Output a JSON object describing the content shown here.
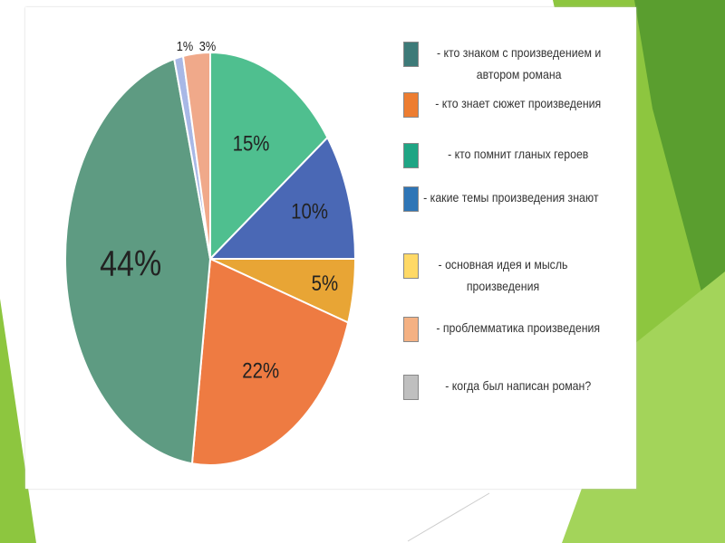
{
  "chart_data": {
    "type": "pie",
    "title": "",
    "slices": [
      {
        "label": "- кто помнит гланых героев",
        "value": 15,
        "display": "15%",
        "color": "#4fbf8f"
      },
      {
        "label": "- какие темы произведения знают",
        "value": 10,
        "display": "10%",
        "color": "#4a68b5"
      },
      {
        "label": "- основная идея и мысль произведения",
        "value": 5,
        "display": "5%",
        "color": "#e8a535"
      },
      {
        "label": "- кто знает сюжет произведения",
        "value": 22,
        "display": "22%",
        "color": "#ee7b42"
      },
      {
        "label": "- кто знаком с произведением и автором романа",
        "value": 44,
        "display": "44%",
        "color": "#5e9b82"
      },
      {
        "label": "- когда был написан роман?",
        "value": 1,
        "display": "1%",
        "color": "#a8b8e6"
      },
      {
        "label": "- проблемматика произведения",
        "value": 3,
        "display": "3%",
        "color": "#f0a98a"
      }
    ],
    "legend": [
      {
        "text": "- кто знаком с произведением и автором романа",
        "color": "#3d7a78"
      },
      {
        "text": "- кто знает сюжет произведения",
        "color": "#ed7d31"
      },
      {
        "text": "- кто помнит гланых героев",
        "color": "#1fa584"
      },
      {
        "text": "- какие темы произведения знают",
        "color": "#2e75b6"
      },
      {
        "text": "- основная идея и мысль произведения",
        "color": "#ffd966"
      },
      {
        "text": "- проблемматика произведения",
        "color": "#f4b183"
      },
      {
        "text": "- когда был написан роман?",
        "color": "#bfbfbf"
      }
    ],
    "legend_position": "right"
  }
}
